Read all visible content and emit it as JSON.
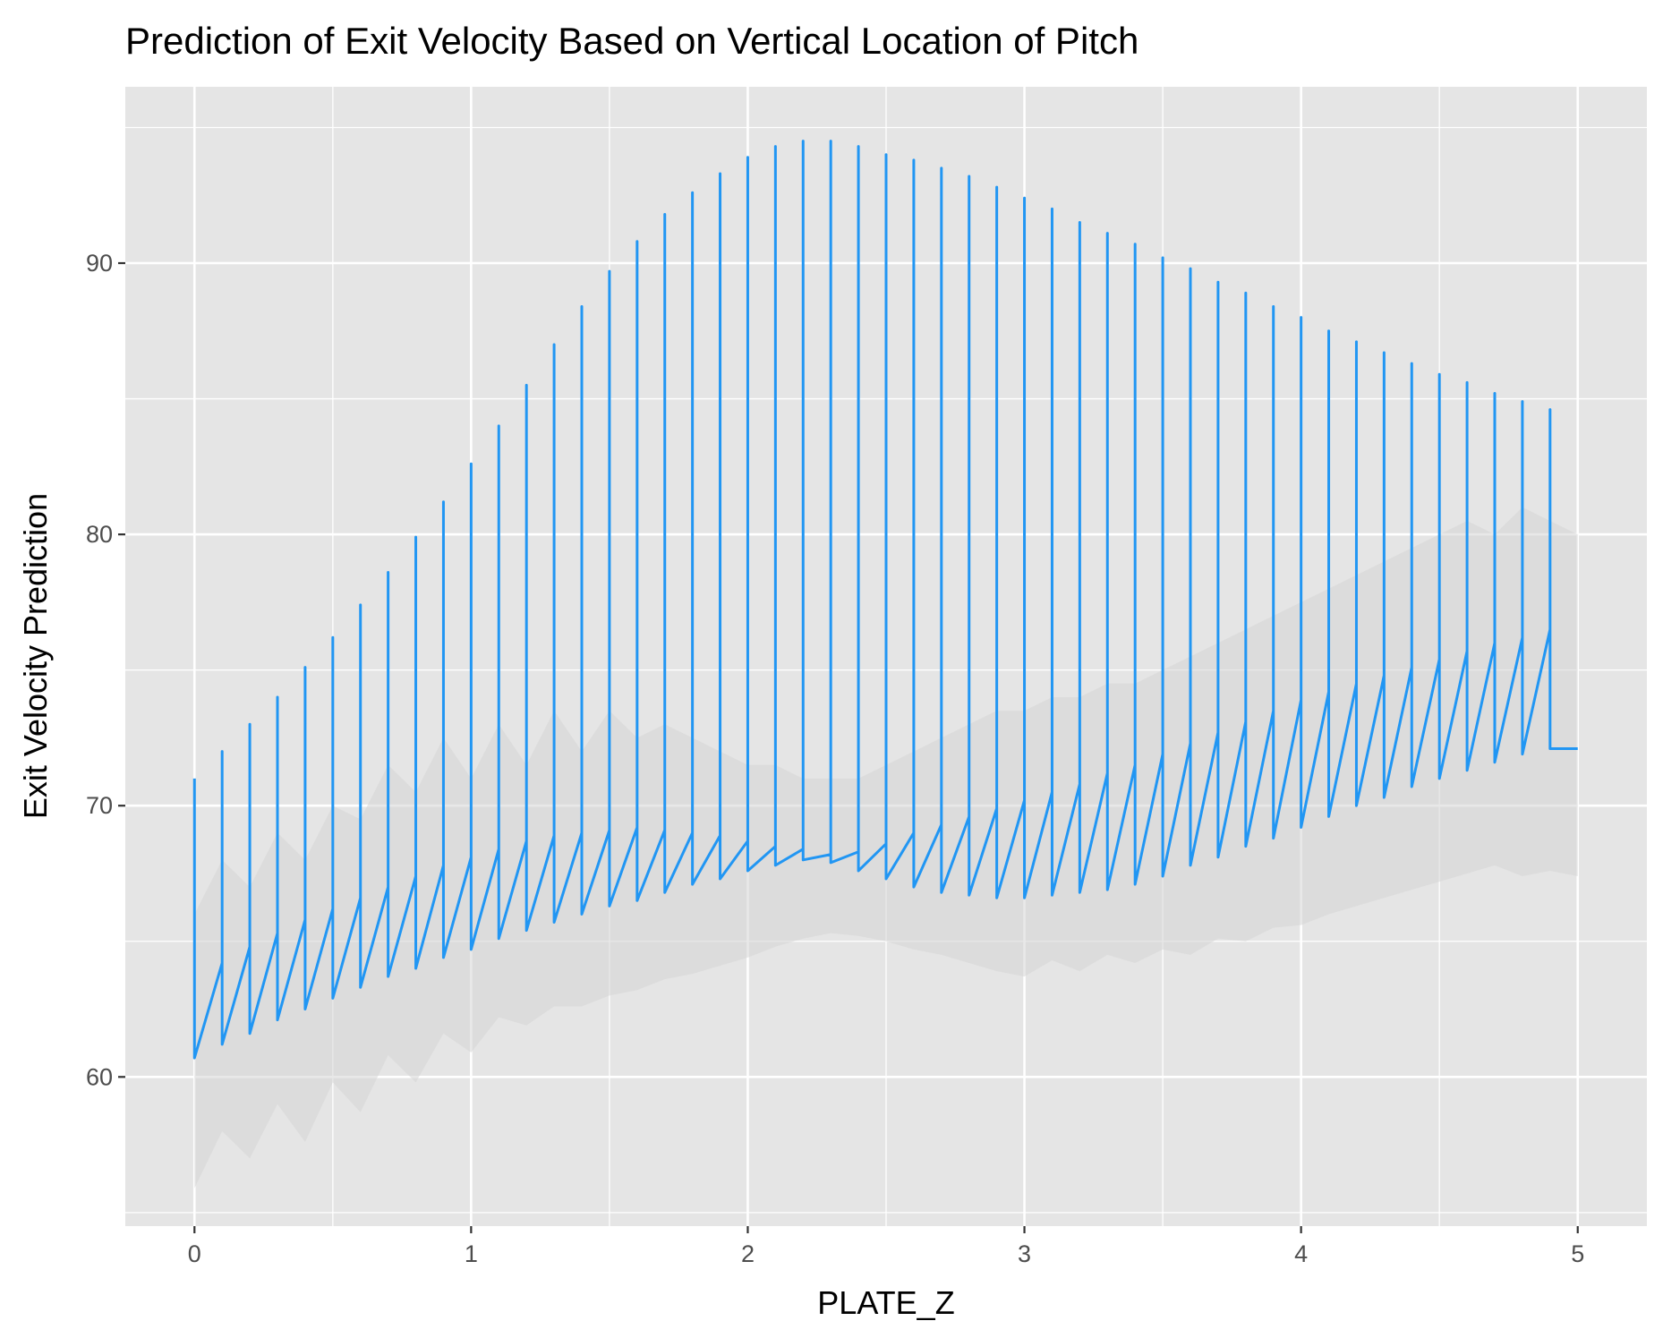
{
  "chart_data": {
    "type": "line",
    "title": "Prediction of Exit Velocity Based on Vertical Location of Pitch",
    "xlabel": "PLATE_Z",
    "ylabel": "Exit Velocity Prediction",
    "xlim": [
      -0.25,
      5.25
    ],
    "ylim": [
      54.5,
      96.5
    ],
    "x_ticks": [
      0,
      1,
      2,
      3,
      4,
      5
    ],
    "x_tick_labels": [
      "0",
      "1",
      "2",
      "3",
      "4",
      "5"
    ],
    "y_ticks": [
      60,
      70,
      80,
      90
    ],
    "y_tick_labels": [
      "60",
      "70",
      "80",
      "90"
    ],
    "grid": true,
    "legend": "none",
    "colors": {
      "panel_background": "#e5e5e5",
      "grid": "#ffffff",
      "line": "#2196f3",
      "ribbon": "#d6d6d6"
    },
    "series": [
      {
        "x": [
          0.0,
          0.1,
          0.2,
          0.3,
          0.4,
          0.5,
          0.6,
          0.7,
          0.8,
          0.9,
          1.0,
          1.1,
          1.2,
          1.3,
          1.4,
          1.5,
          1.6,
          1.7,
          1.8,
          1.9,
          2.0,
          2.1,
          2.2,
          2.3,
          2.4,
          2.5,
          2.6,
          2.7,
          2.8,
          2.9,
          3.0,
          3.1,
          3.2,
          3.3,
          3.4,
          3.5,
          3.6,
          3.7,
          3.8,
          3.9,
          4.0,
          4.1,
          4.2,
          4.3,
          4.4,
          4.5,
          4.6,
          4.7,
          4.8,
          4.9,
          5.0
        ],
        "high": [
          71.0,
          72.0,
          73.0,
          74.0,
          75.1,
          76.2,
          77.4,
          78.6,
          79.9,
          81.2,
          82.6,
          84.0,
          85.5,
          87.0,
          88.4,
          89.7,
          90.8,
          91.8,
          92.6,
          93.3,
          93.9,
          94.3,
          94.5,
          94.5,
          94.3,
          94.0,
          93.8,
          93.5,
          93.2,
          92.8,
          92.4,
          92.0,
          91.5,
          91.1,
          90.7,
          90.2,
          89.8,
          89.3,
          88.9,
          88.4,
          88.0,
          87.5,
          87.1,
          86.7,
          86.3,
          85.9,
          85.6,
          85.2,
          84.9,
          84.6,
          null
        ],
        "low": [
          60.7,
          61.2,
          61.6,
          62.1,
          62.5,
          62.9,
          63.3,
          63.7,
          64.0,
          64.4,
          64.7,
          65.1,
          65.4,
          65.7,
          66.0,
          66.3,
          66.5,
          66.8,
          67.1,
          67.3,
          67.6,
          67.8,
          68.0,
          67.9,
          67.6,
          67.3,
          67.0,
          66.8,
          66.7,
          66.6,
          66.6,
          66.7,
          66.8,
          66.9,
          67.1,
          67.4,
          67.8,
          68.1,
          68.5,
          68.8,
          69.2,
          69.6,
          70.0,
          70.3,
          70.7,
          71.0,
          71.3,
          71.6,
          71.9,
          72.1,
          null
        ],
        "fit": [
          60.7,
          64.2,
          64.8,
          65.3,
          65.8,
          66.2,
          66.6,
          67.0,
          67.4,
          67.8,
          68.1,
          68.4,
          68.7,
          68.9,
          69.0,
          69.1,
          69.2,
          69.1,
          69.0,
          68.9,
          68.7,
          68.5,
          68.4,
          68.2,
          68.3,
          68.6,
          69.0,
          69.3,
          69.6,
          69.9,
          70.2,
          70.5,
          70.8,
          71.2,
          71.5,
          71.9,
          72.3,
          72.7,
          73.1,
          73.5,
          73.9,
          74.2,
          74.5,
          74.8,
          75.1,
          75.4,
          75.7,
          76.0,
          76.2,
          76.5,
          72.1
        ],
        "ribbon_low": [
          55.9,
          58.0,
          57.0,
          59.0,
          57.6,
          59.8,
          58.7,
          60.8,
          59.8,
          61.6,
          60.9,
          62.2,
          61.9,
          62.6,
          62.6,
          63.0,
          63.2,
          63.6,
          63.8,
          64.1,
          64.4,
          64.8,
          65.1,
          65.3,
          65.2,
          65.0,
          64.7,
          64.5,
          64.2,
          63.9,
          63.7,
          64.3,
          63.9,
          64.5,
          64.2,
          64.7,
          64.5,
          65.1,
          65.0,
          65.5,
          65.6,
          66.0,
          66.3,
          66.6,
          66.9,
          67.2,
          67.5,
          67.8,
          67.4,
          67.6,
          67.4
        ],
        "ribbon_high": [
          66.0,
          68.0,
          67.0,
          69.0,
          68.0,
          70.0,
          69.5,
          71.5,
          70.5,
          72.5,
          71.0,
          73.0,
          71.5,
          73.5,
          72.0,
          73.5,
          72.5,
          73.0,
          72.5,
          72.0,
          71.5,
          71.5,
          71.0,
          71.0,
          71.0,
          71.5,
          72.0,
          72.5,
          73.0,
          73.5,
          73.5,
          74.0,
          74.0,
          74.5,
          74.5,
          75.0,
          75.5,
          76.0,
          76.5,
          77.0,
          77.5,
          78.0,
          78.5,
          79.0,
          79.5,
          80.0,
          80.5,
          80.0,
          81.0,
          80.5,
          80.0
        ]
      }
    ]
  }
}
